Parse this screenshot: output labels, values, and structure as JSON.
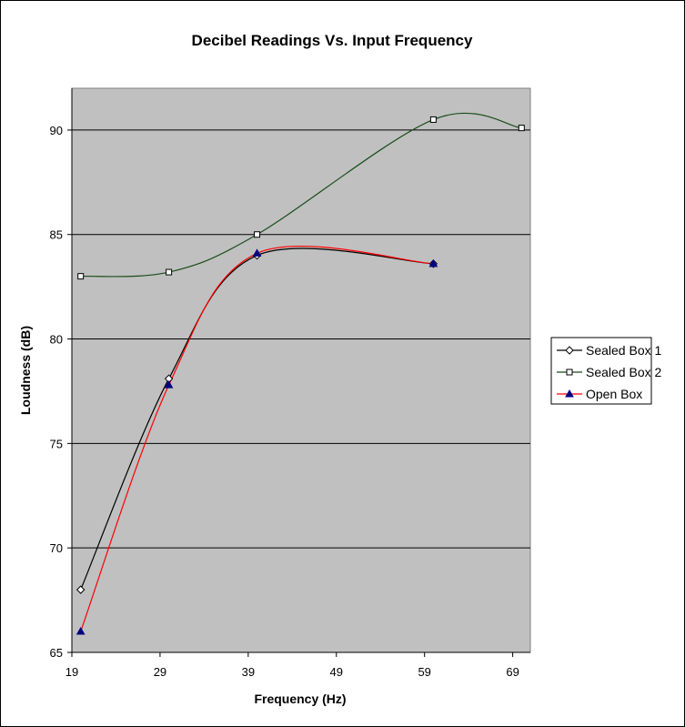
{
  "chart_data": {
    "type": "line",
    "title": "Decibel Readings Vs. Input Frequency",
    "xlabel": "Frequency (Hz)",
    "ylabel": "Loudness (dB)",
    "xlim": [
      19,
      71
    ],
    "ylim": [
      65,
      92
    ],
    "x_ticks": [
      19,
      29,
      39,
      49,
      59,
      69
    ],
    "y_ticks": [
      65,
      70,
      75,
      80,
      85,
      90
    ],
    "grid": "horizontal major gridlines",
    "plot_background": "#c0c0c0",
    "legend_position": "right",
    "series": [
      {
        "name": "Sealed Box 1",
        "color": "#000000",
        "marker": "diamond-open",
        "x": [
          20,
          30,
          40,
          60
        ],
        "y": [
          68.0,
          78.1,
          84.0,
          83.6
        ]
      },
      {
        "name": "Sealed Box 2",
        "color": "#1a4d1a",
        "marker": "square-open",
        "x": [
          20,
          30,
          40,
          60,
          70
        ],
        "y": [
          83.0,
          83.2,
          85.0,
          90.5,
          90.1
        ]
      },
      {
        "name": "Open Box",
        "color": "#ff0000",
        "marker": "triangle-navy",
        "x": [
          20,
          30,
          40,
          60
        ],
        "y": [
          66.0,
          77.8,
          84.1,
          83.6
        ]
      }
    ]
  }
}
